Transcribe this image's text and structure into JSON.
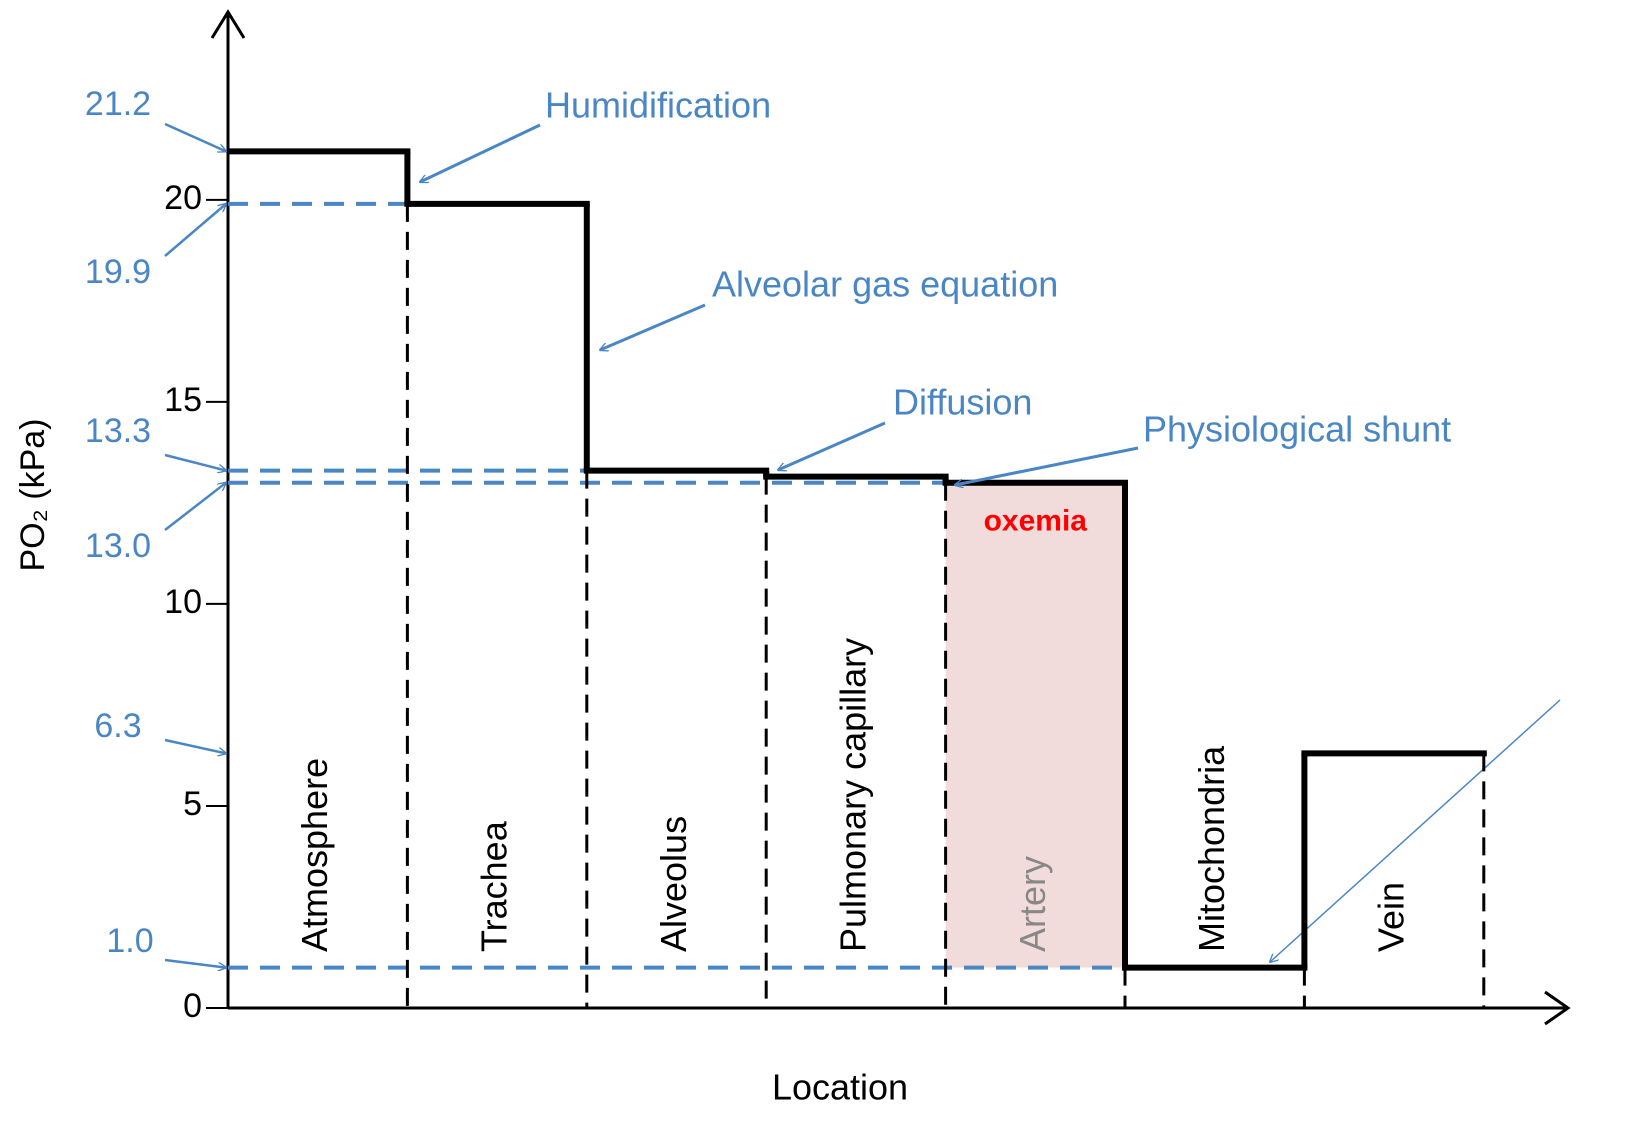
{
  "chart_data": {
    "type": "step",
    "x_label": "Location",
    "y_label": "PO₂ (kPa)",
    "categories": [
      "Atmosphere",
      "Trachea",
      "Alveolus",
      "Pulmonary capillary",
      "Artery",
      "Mitochondria",
      "Vein"
    ],
    "values": [
      21.2,
      19.9,
      13.3,
      13.15,
      13.0,
      1.0,
      6.3
    ],
    "color": "#000000",
    "ylim": [
      0,
      24.5
    ],
    "yticks": [
      0,
      5,
      10,
      15,
      20
    ],
    "reference_levels": [
      21.2,
      19.9,
      13.3,
      {
        "value": 13.0,
        "label": "13.0"
      },
      6.3,
      {
        "value": 1.0,
        "label": "1.0"
      }
    ],
    "reference_color": "#4a86c5",
    "annotations": [
      "Humidification",
      "Alveolar gas equation",
      "Diffusion",
      "Physiological shunt"
    ],
    "highlight": {
      "category": "Artery",
      "label": "oxemia",
      "color": "#f2dcdb",
      "label_color": "#ff0000"
    }
  }
}
